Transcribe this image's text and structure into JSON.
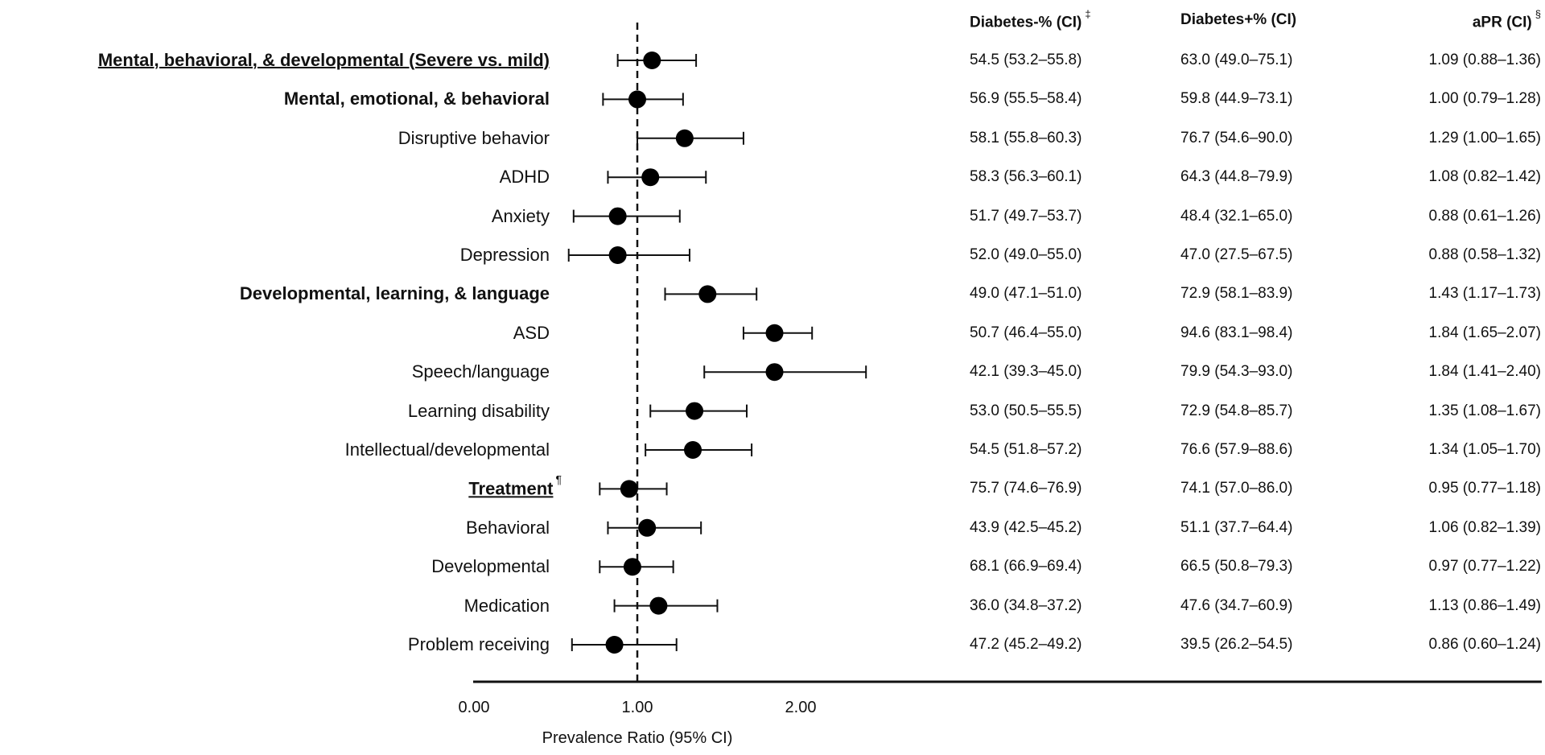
{
  "chart_data": {
    "type": "forest",
    "title": "",
    "xlabel": "Prevalence Ratio (95% CI)",
    "xticks": [
      "0.00",
      "1.00",
      "2.00"
    ],
    "xlim": [
      0,
      2
    ],
    "reference_line": 1.0,
    "columns": {
      "dm_neg": {
        "label": "Diabetes-% (CI)",
        "sup": "‡"
      },
      "dm_pos": {
        "label": "Diabetes+% (CI)",
        "sup": ""
      },
      "apr": {
        "label": "aPR (CI)",
        "sup": "§"
      }
    },
    "rows": [
      {
        "label": "Mental, behavioral, & developmental (Severe vs. mild)",
        "style": "bold-underline",
        "sup": "",
        "pr": 1.09,
        "lo": 0.88,
        "hi": 1.36,
        "dm_neg": "54.5 (53.2–55.8)",
        "dm_pos": "63.0 (49.0–75.1)",
        "apr": "1.09 (0.88–1.36)"
      },
      {
        "label": "Mental, emotional, & behavioral",
        "style": "bold",
        "sup": "",
        "pr": 1.0,
        "lo": 0.79,
        "hi": 1.28,
        "dm_neg": "56.9 (55.5–58.4)",
        "dm_pos": "59.8 (44.9–73.1)",
        "apr": "1.00 (0.79–1.28)"
      },
      {
        "label": "Disruptive behavior",
        "style": "normal",
        "sup": "",
        "pr": 1.29,
        "lo": 1.0,
        "hi": 1.65,
        "dm_neg": "58.1 (55.8–60.3)",
        "dm_pos": "76.7 (54.6–90.0)",
        "apr": "1.29 (1.00–1.65)"
      },
      {
        "label": "ADHD",
        "style": "normal",
        "sup": "",
        "pr": 1.08,
        "lo": 0.82,
        "hi": 1.42,
        "dm_neg": "58.3 (56.3–60.1)",
        "dm_pos": "64.3 (44.8–79.9)",
        "apr": "1.08 (0.82–1.42)"
      },
      {
        "label": "Anxiety",
        "style": "normal",
        "sup": "",
        "pr": 0.88,
        "lo": 0.61,
        "hi": 1.26,
        "dm_neg": "51.7 (49.7–53.7)",
        "dm_pos": "48.4 (32.1–65.0)",
        "apr": "0.88 (0.61–1.26)"
      },
      {
        "label": "Depression",
        "style": "normal",
        "sup": "",
        "pr": 0.88,
        "lo": 0.58,
        "hi": 1.32,
        "dm_neg": "52.0 (49.0–55.0)",
        "dm_pos": "47.0 (27.5–67.5)",
        "apr": "0.88 (0.58–1.32)"
      },
      {
        "label": "Developmental, learning, & language",
        "style": "bold",
        "sup": "",
        "pr": 1.43,
        "lo": 1.17,
        "hi": 1.73,
        "dm_neg": "49.0 (47.1–51.0)",
        "dm_pos": "72.9 (58.1–83.9)",
        "apr": "1.43 (1.17–1.73)"
      },
      {
        "label": "ASD",
        "style": "normal",
        "sup": "",
        "pr": 1.84,
        "lo": 1.65,
        "hi": 2.07,
        "dm_neg": "50.7 (46.4–55.0)",
        "dm_pos": "94.6 (83.1–98.4)",
        "apr": "1.84 (1.65–2.07)"
      },
      {
        "label": "Speech/language",
        "style": "normal",
        "sup": "",
        "pr": 1.84,
        "lo": 1.41,
        "hi": 2.4,
        "dm_neg": "42.1 (39.3–45.0)",
        "dm_pos": "79.9 (54.3–93.0)",
        "apr": "1.84 (1.41–2.40)"
      },
      {
        "label": "Learning disability",
        "style": "normal",
        "sup": "",
        "pr": 1.35,
        "lo": 1.08,
        "hi": 1.67,
        "dm_neg": "53.0 (50.5–55.5)",
        "dm_pos": "72.9 (54.8–85.7)",
        "apr": "1.35 (1.08–1.67)"
      },
      {
        "label": "Intellectual/developmental",
        "style": "normal",
        "sup": "",
        "pr": 1.34,
        "lo": 1.05,
        "hi": 1.7,
        "dm_neg": "54.5 (51.8–57.2)",
        "dm_pos": "76.6 (57.9–88.6)",
        "apr": "1.34 (1.05–1.70)"
      },
      {
        "label": "Treatment",
        "style": "bold-underline",
        "sup": "¶",
        "pr": 0.95,
        "lo": 0.77,
        "hi": 1.18,
        "dm_neg": "75.7 (74.6–76.9)",
        "dm_pos": "74.1 (57.0–86.0)",
        "apr": "0.95 (0.77–1.18)"
      },
      {
        "label": "Behavioral",
        "style": "normal",
        "sup": "",
        "pr": 1.06,
        "lo": 0.82,
        "hi": 1.39,
        "dm_neg": "43.9 (42.5–45.2)",
        "dm_pos": "51.1 (37.7–64.4)",
        "apr": "1.06 (0.82–1.39)"
      },
      {
        "label": "Developmental",
        "style": "normal",
        "sup": "",
        "pr": 0.97,
        "lo": 0.77,
        "hi": 1.22,
        "dm_neg": "68.1 (66.9–69.4)",
        "dm_pos": "66.5 (50.8–79.3)",
        "apr": "0.97 (0.77–1.22)"
      },
      {
        "label": "Medication",
        "style": "normal",
        "sup": "",
        "pr": 1.13,
        "lo": 0.86,
        "hi": 1.49,
        "dm_neg": "36.0 (34.8–37.2)",
        "dm_pos": "47.6 (34.7–60.9)",
        "apr": "1.13 (0.86–1.49)"
      },
      {
        "label": "Problem receiving",
        "style": "normal",
        "sup": "",
        "pr": 0.86,
        "lo": 0.6,
        "hi": 1.24,
        "dm_neg": "47.2 (45.2–49.2)",
        "dm_pos": "39.5 (26.2–54.5)",
        "apr": "0.86 (0.60–1.24)"
      }
    ],
    "grid": false,
    "legend": "none"
  }
}
